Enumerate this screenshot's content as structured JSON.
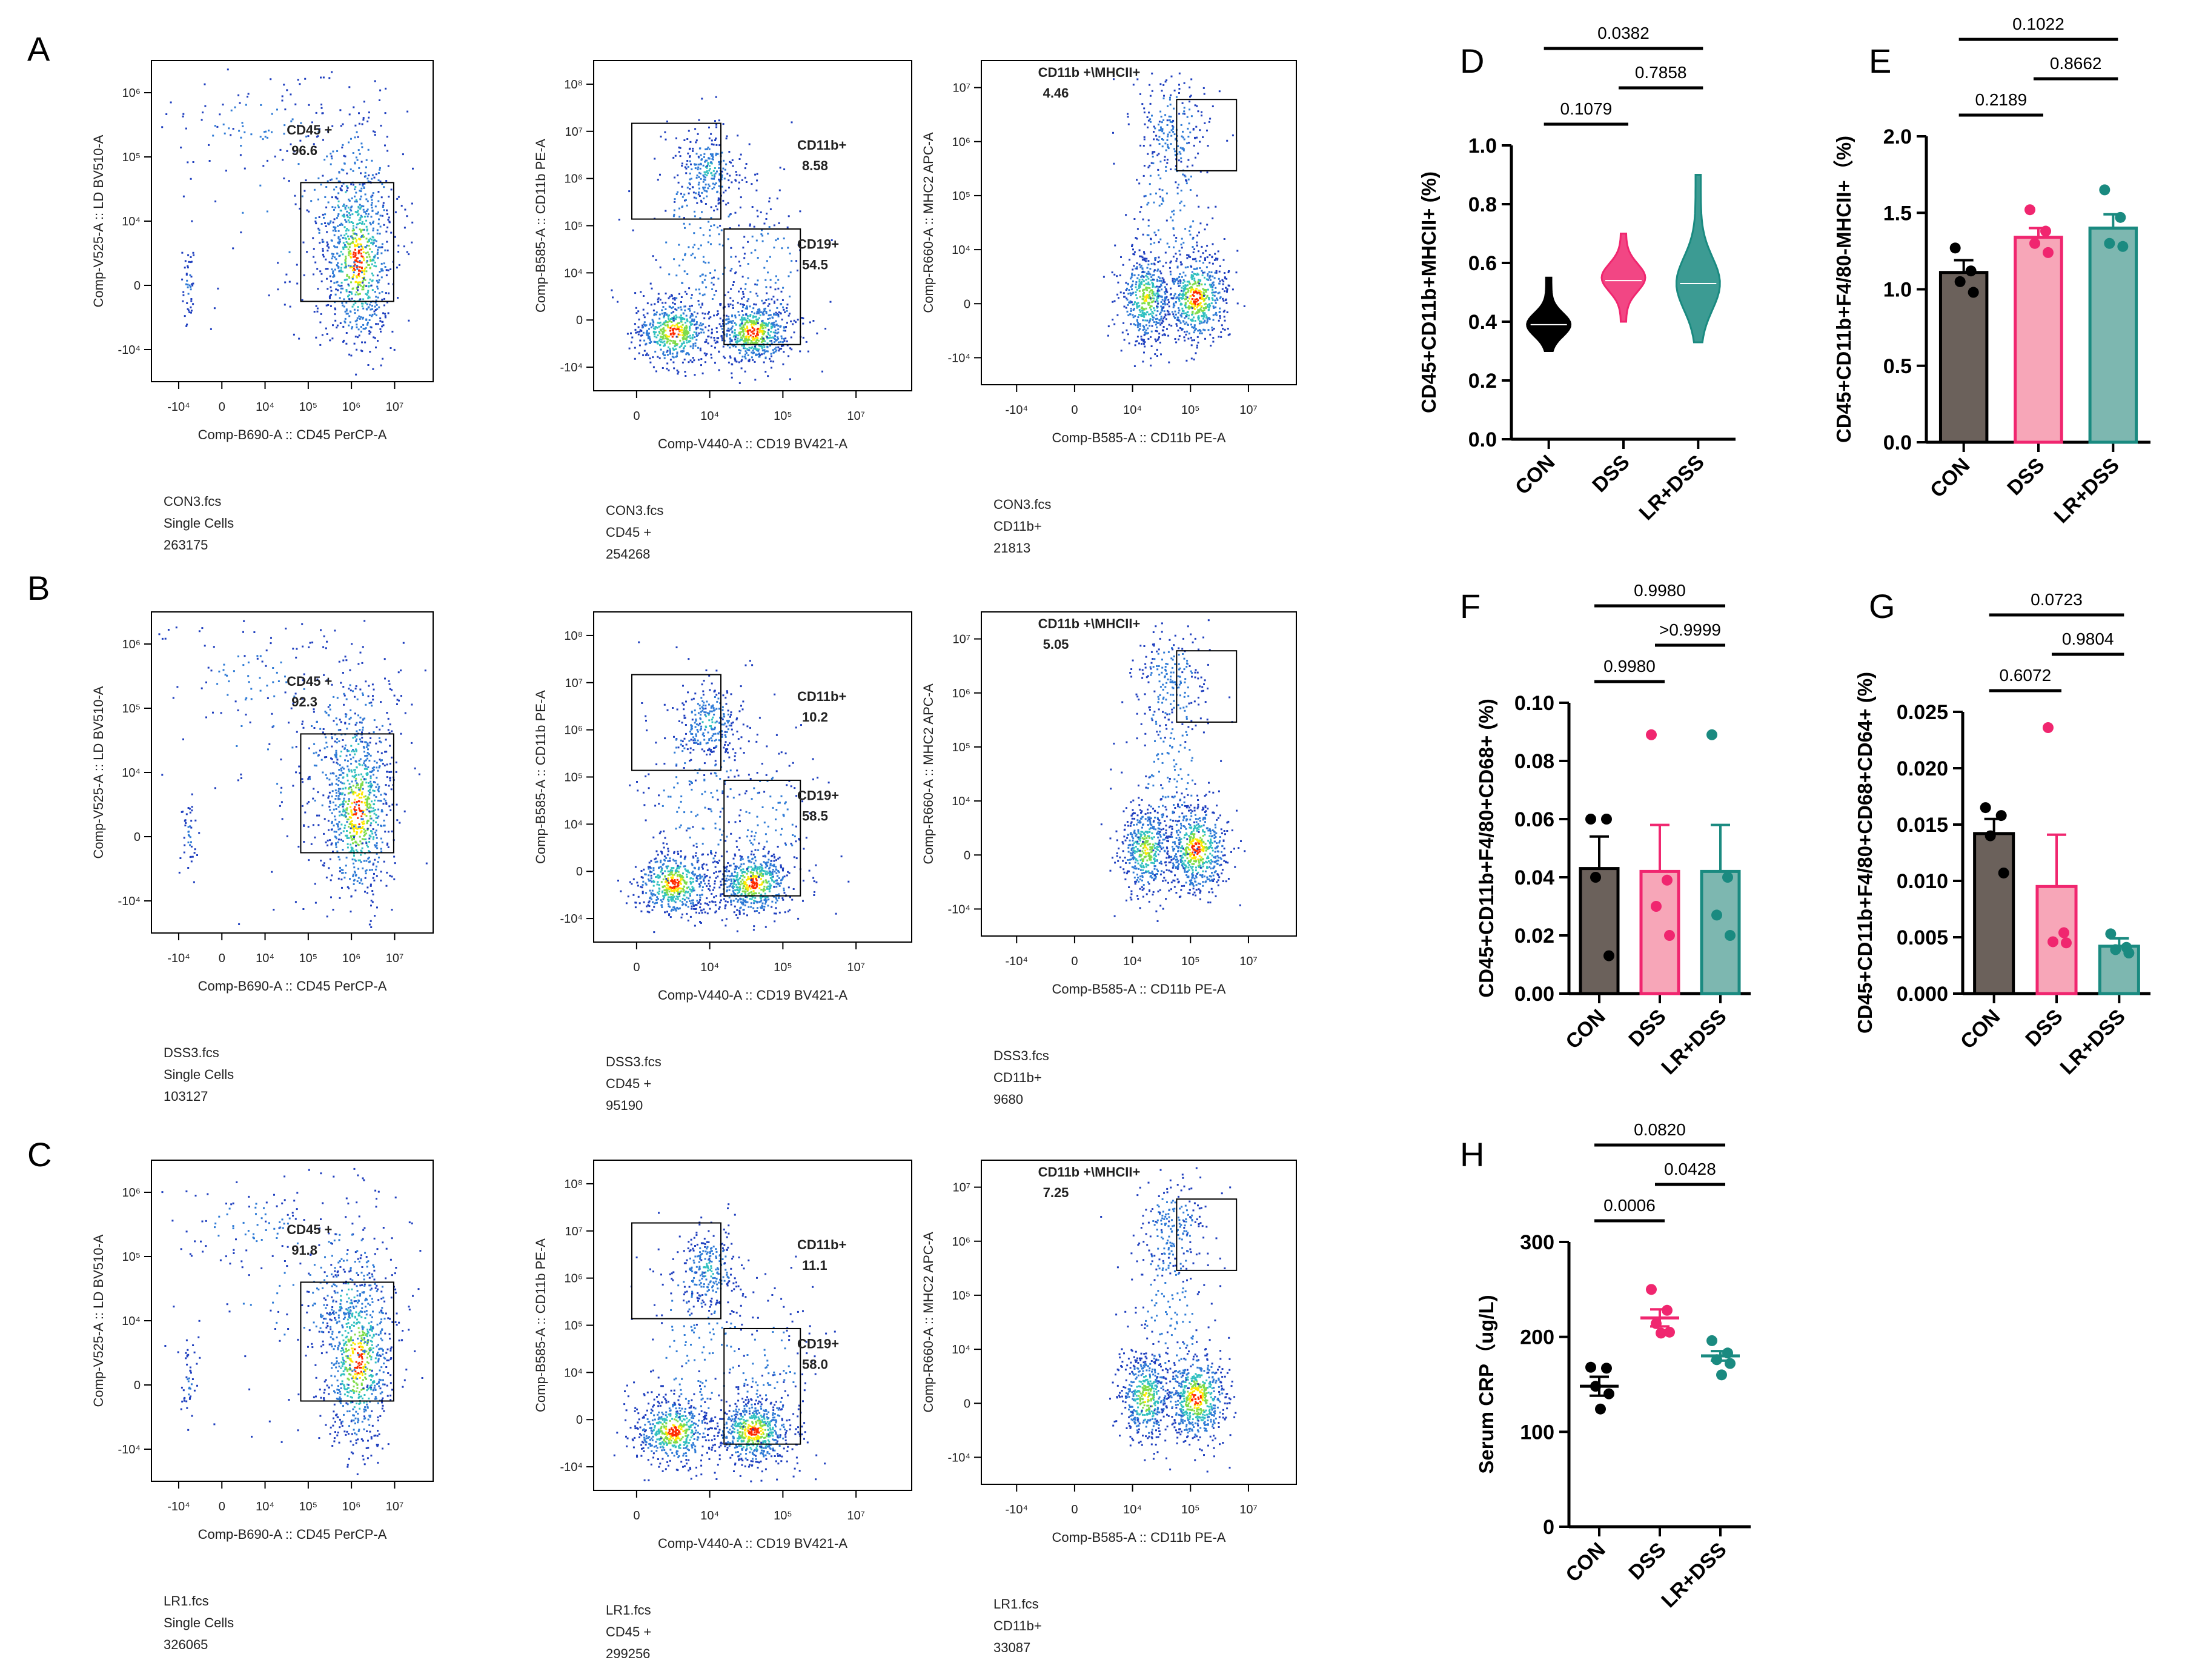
{
  "panel_letters": [
    "A",
    "B",
    "C",
    "D",
    "E",
    "F",
    "G",
    "H"
  ],
  "flow_rows": [
    {
      "letter": "A",
      "plots": [
        {
          "gate_kind": "cd45",
          "y_label": "Comp-V525-A :: LD BV510-A",
          "x_label": "Comp-B690-A :: CD45 PerCP-A",
          "x_ticks": [
            "-10⁴",
            "0",
            "10⁴",
            "10⁵",
            "10⁶",
            "10⁷"
          ],
          "y_ticks": [
            "10⁶",
            "10⁵",
            "10⁴",
            "0",
            "-10⁴"
          ],
          "gates": [
            {
              "name": "CD45 +",
              "value": "96.6"
            }
          ],
          "footer": [
            "CON3.fcs",
            "Single Cells",
            "263175"
          ]
        },
        {
          "gate_kind": "cd11b",
          "y_label": "Comp-B585-A :: CD11b PE-A",
          "x_label": "Comp-V440-A :: CD19 BV421-A",
          "x_ticks": [
            "0",
            "10⁴",
            "10⁵",
            "10⁷"
          ],
          "y_ticks": [
            "10⁸",
            "10⁷",
            "10⁶",
            "10⁵",
            "10⁴",
            "0",
            "-10⁴"
          ],
          "gates": [
            {
              "name": "CD11b+",
              "value": "8.58"
            },
            {
              "name": "CD19+",
              "value": "54.5"
            }
          ],
          "footer": [
            "CON3.fcs",
            "CD45 +",
            "254268"
          ]
        },
        {
          "gate_kind": "mhc",
          "y_label": "Comp-R660-A :: MHC2 APC-A",
          "x_label": "Comp-B585-A :: CD11b PE-A",
          "x_ticks": [
            "-10⁴",
            "0",
            "10⁴",
            "10⁵",
            "10⁷"
          ],
          "y_ticks": [
            "10⁷",
            "10⁶",
            "10⁵",
            "10⁴",
            "0",
            "-10⁴"
          ],
          "gates": [
            {
              "name": "CD11b +\\MHCII+",
              "value": "4.46"
            }
          ],
          "footer": [
            "CON3.fcs",
            "CD11b+",
            "21813"
          ]
        }
      ]
    },
    {
      "letter": "B",
      "plots": [
        {
          "gate_kind": "cd45",
          "y_label": "Comp-V525-A :: LD BV510-A",
          "x_label": "Comp-B690-A :: CD45 PerCP-A",
          "x_ticks": [
            "-10⁴",
            "0",
            "10⁴",
            "10⁵",
            "10⁶",
            "10⁷"
          ],
          "y_ticks": [
            "10⁶",
            "10⁵",
            "10⁴",
            "0",
            "-10⁴"
          ],
          "gates": [
            {
              "name": "CD45 +",
              "value": "92.3"
            }
          ],
          "footer": [
            "DSS3.fcs",
            "Single Cells",
            "103127"
          ]
        },
        {
          "gate_kind": "cd11b",
          "y_label": "Comp-B585-A :: CD11b PE-A",
          "x_label": "Comp-V440-A :: CD19 BV421-A",
          "x_ticks": [
            "0",
            "10⁴",
            "10⁵",
            "10⁷"
          ],
          "y_ticks": [
            "10⁸",
            "10⁷",
            "10⁶",
            "10⁵",
            "10⁴",
            "0",
            "-10⁴"
          ],
          "gates": [
            {
              "name": "CD11b+",
              "value": "10.2"
            },
            {
              "name": "CD19+",
              "value": "58.5"
            }
          ],
          "footer": [
            "DSS3.fcs",
            "CD45 +",
            "95190"
          ]
        },
        {
          "gate_kind": "mhc",
          "y_label": "Comp-R660-A :: MHC2 APC-A",
          "x_label": "Comp-B585-A :: CD11b PE-A",
          "x_ticks": [
            "-10⁴",
            "0",
            "10⁴",
            "10⁵",
            "10⁷"
          ],
          "y_ticks": [
            "10⁷",
            "10⁶",
            "10⁵",
            "10⁴",
            "0",
            "-10⁴"
          ],
          "gates": [
            {
              "name": "CD11b +\\MHCII+",
              "value": "5.05"
            }
          ],
          "footer": [
            "DSS3.fcs",
            "CD11b+",
            "9680"
          ]
        }
      ]
    },
    {
      "letter": "C",
      "plots": [
        {
          "gate_kind": "cd45",
          "y_label": "Comp-V525-A :: LD BV510-A",
          "x_label": "Comp-B690-A :: CD45 PerCP-A",
          "x_ticks": [
            "-10⁴",
            "0",
            "10⁴",
            "10⁵",
            "10⁶",
            "10⁷"
          ],
          "y_ticks": [
            "10⁶",
            "10⁵",
            "10⁴",
            "0",
            "-10⁴"
          ],
          "gates": [
            {
              "name": "CD45 +",
              "value": "91.8"
            }
          ],
          "footer": [
            "LR1.fcs",
            "Single Cells",
            "326065"
          ]
        },
        {
          "gate_kind": "cd11b",
          "y_label": "Comp-B585-A :: CD11b PE-A",
          "x_label": "Comp-V440-A :: CD19 BV421-A",
          "x_ticks": [
            "0",
            "10⁴",
            "10⁵",
            "10⁷"
          ],
          "y_ticks": [
            "10⁸",
            "10⁷",
            "10⁶",
            "10⁵",
            "10⁴",
            "0",
            "-10⁴"
          ],
          "gates": [
            {
              "name": "CD11b+",
              "value": "11.1"
            },
            {
              "name": "CD19+",
              "value": "58.0"
            }
          ],
          "footer": [
            "LR1.fcs",
            "CD45 +",
            "299256"
          ]
        },
        {
          "gate_kind": "mhc",
          "y_label": "Comp-R660-A :: MHC2 APC-A",
          "x_label": "Comp-B585-A :: CD11b PE-A",
          "x_ticks": [
            "-10⁴",
            "0",
            "10⁴",
            "10⁵",
            "10⁷"
          ],
          "y_ticks": [
            "10⁷",
            "10⁶",
            "10⁵",
            "10⁴",
            "0",
            "-10⁴"
          ],
          "gates": [
            {
              "name": "CD11b +\\MHCII+",
              "value": "7.25"
            }
          ],
          "footer": [
            "LR1.fcs",
            "CD11b+",
            "33087"
          ]
        }
      ]
    }
  ],
  "colors": {
    "CON": "#000000",
    "DSS": "#f0266f",
    "LR+DSS": "#1a8a80",
    "bar_CON": "#6b615b",
    "bar_DSS": "#f7a6b8",
    "bar_LR+DSS": "#7db7b0",
    "flow_low": "#1f3fbf",
    "flow_mid": "#31c0c0",
    "flow_high": "#ffe800",
    "flow_peak": "#ff2a00"
  },
  "chart_data": [
    {
      "id": "D",
      "type": "violin",
      "categories": [
        "CON",
        "DSS",
        "LR+DSS"
      ],
      "ylabel": "CD45+CD11b+MHCII+ (%)",
      "ylim": [
        0,
        1.0
      ],
      "yticks": [
        "0.0",
        "0.2",
        "0.4",
        "0.6",
        "0.8",
        "1.0"
      ],
      "violins": [
        {
          "min": 0.3,
          "max": 0.55,
          "median": 0.39,
          "mode": 0.39
        },
        {
          "min": 0.4,
          "max": 0.7,
          "median": 0.54,
          "mode": 0.55
        },
        {
          "min": 0.33,
          "max": 0.9,
          "median": 0.53,
          "mode": 0.53
        }
      ],
      "comparisons": [
        {
          "from": 0,
          "to": 1,
          "label": "0.1079"
        },
        {
          "from": 1,
          "to": 2,
          "label": "0.7858"
        },
        {
          "from": 0,
          "to": 2,
          "label": "0.0382"
        }
      ]
    },
    {
      "id": "E",
      "type": "bar",
      "categories": [
        "CON",
        "DSS",
        "LR+DSS"
      ],
      "ylabel": "CD45+CD11b+F4/80-MHCII+（%)",
      "ylim": [
        0,
        2.0
      ],
      "yticks": [
        "0.0",
        "0.5",
        "1.0",
        "1.5",
        "2.0"
      ],
      "means": [
        1.11,
        1.34,
        1.4
      ],
      "sem": [
        0.08,
        0.06,
        0.09
      ],
      "points": [
        [
          1.27,
          1.12,
          1.05,
          0.98
        ],
        [
          1.52,
          1.38,
          1.3,
          1.24
        ],
        [
          1.65,
          1.47,
          1.3,
          1.28
        ]
      ],
      "comparisons": [
        {
          "from": 0,
          "to": 1,
          "label": "0.2189"
        },
        {
          "from": 1,
          "to": 2,
          "label": "0.8662"
        },
        {
          "from": 0,
          "to": 2,
          "label": "0.1022"
        }
      ]
    },
    {
      "id": "F",
      "type": "bar",
      "categories": [
        "CON",
        "DSS",
        "LR+DSS"
      ],
      "ylabel": "CD45+CD11b+F4/80+CD68+ (%)",
      "ylim": [
        0,
        0.1
      ],
      "yticks": [
        "0.00",
        "0.02",
        "0.04",
        "0.06",
        "0.08",
        "0.10"
      ],
      "means": [
        0.043,
        0.042,
        0.042
      ],
      "sem": [
        0.011,
        0.016,
        0.016
      ],
      "points": [
        [
          0.06,
          0.06,
          0.04,
          0.013
        ],
        [
          0.089,
          0.039,
          0.03,
          0.02
        ],
        [
          0.089,
          0.04,
          0.027,
          0.02
        ]
      ],
      "comparisons": [
        {
          "from": 0,
          "to": 1,
          "label": "0.9980"
        },
        {
          "from": 1,
          "to": 2,
          "label": ">0.9999"
        },
        {
          "from": 0,
          "to": 2,
          "label": "0.9980"
        }
      ]
    },
    {
      "id": "G",
      "type": "bar",
      "categories": [
        "CON",
        "DSS",
        "LR+DSS"
      ],
      "ylabel": "CD45+CD11b+F4/80+CD68+CD64+ (%)",
      "ylim": [
        0,
        0.025
      ],
      "yticks": [
        "0.000",
        "0.005",
        "0.010",
        "0.015",
        "0.020",
        "0.025"
      ],
      "means": [
        0.0142,
        0.0095,
        0.0042
      ],
      "sem": [
        0.0013,
        0.0046,
        0.0007
      ],
      "points": [
        [
          0.0165,
          0.0158,
          0.014,
          0.0107
        ],
        [
          0.0236,
          0.0054,
          0.0046,
          0.0045
        ],
        [
          0.0053,
          0.0041,
          0.0039,
          0.0036
        ]
      ],
      "comparisons": [
        {
          "from": 0,
          "to": 1,
          "label": "0.6072"
        },
        {
          "from": 1,
          "to": 2,
          "label": "0.9804"
        },
        {
          "from": 0,
          "to": 2,
          "label": "0.0723"
        }
      ]
    },
    {
      "id": "H",
      "type": "scatter",
      "categories": [
        "CON",
        "DSS",
        "LR+DSS"
      ],
      "ylabel": "Serum CRP（ug/L)",
      "ylim": [
        0,
        300
      ],
      "yticks": [
        "0",
        "100",
        "200",
        "300"
      ],
      "means": [
        148,
        220,
        180
      ],
      "sem": [
        10,
        9,
        5
      ],
      "points": [
        [
          168,
          167,
          148,
          140,
          124
        ],
        [
          250,
          228,
          214,
          205,
          204
        ],
        [
          196,
          183,
          176,
          172,
          160
        ]
      ],
      "comparisons": [
        {
          "from": 0,
          "to": 1,
          "label": "0.0006"
        },
        {
          "from": 1,
          "to": 2,
          "label": "0.0428"
        },
        {
          "from": 0,
          "to": 2,
          "label": "0.0820"
        }
      ]
    }
  ]
}
